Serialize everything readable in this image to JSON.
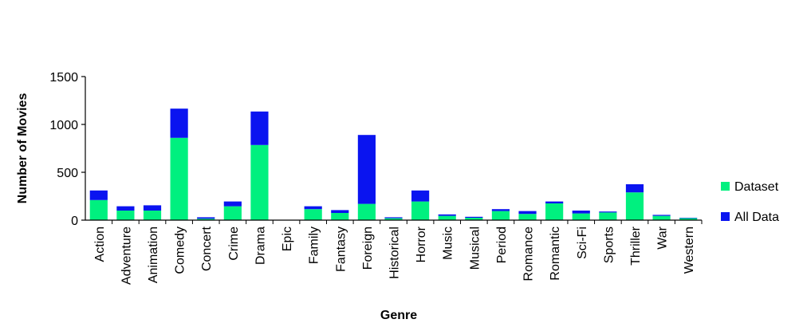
{
  "chart_data": {
    "type": "bar",
    "stacked": true,
    "title": "",
    "xlabel": "Genre",
    "ylabel": "Number of Movies",
    "ylim": [
      0,
      1500
    ],
    "yticks": [
      0,
      500,
      1000,
      1500
    ],
    "grid": false,
    "legend_position": "right",
    "categories": [
      "Action",
      "Adventure",
      "Animation",
      "Comedy",
      "Concert",
      "Crime",
      "Drama",
      "Epic",
      "Family",
      "Fantasy",
      "Foreign",
      "Historical",
      "Horror",
      "Music",
      "Musical",
      "Period",
      "Romance",
      "Romantic",
      "Sci-Fi",
      "Sports",
      "Thriller",
      "War",
      "Western"
    ],
    "series": [
      {
        "name": "Dataset",
        "color": "#00f07f",
        "values": [
          210,
          100,
          100,
          860,
          15,
          145,
          785,
          0,
          115,
          75,
          170,
          20,
          195,
          45,
          25,
          95,
          65,
          175,
          70,
          80,
          290,
          45,
          20
        ]
      },
      {
        "name": "All Data",
        "color": "#0a14f0",
        "values": [
          100,
          45,
          55,
          305,
          15,
          50,
          350,
          0,
          30,
          30,
          720,
          10,
          115,
          15,
          10,
          20,
          30,
          20,
          30,
          10,
          85,
          10,
          5
        ]
      }
    ]
  }
}
